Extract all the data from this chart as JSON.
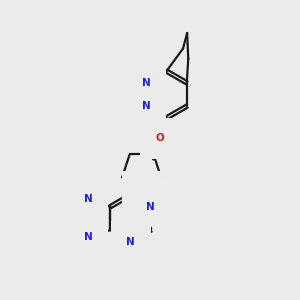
{
  "bg_color": "#ebebeb",
  "bond_color": "#1a1a1a",
  "nitrogen_color": "#2020cc",
  "oxygen_color": "#cc2020",
  "lw": 1.6,
  "fs": 7.5,
  "dbg": 0.055,
  "xlim": [
    0,
    10
  ],
  "ylim": [
    0,
    10
  ]
}
